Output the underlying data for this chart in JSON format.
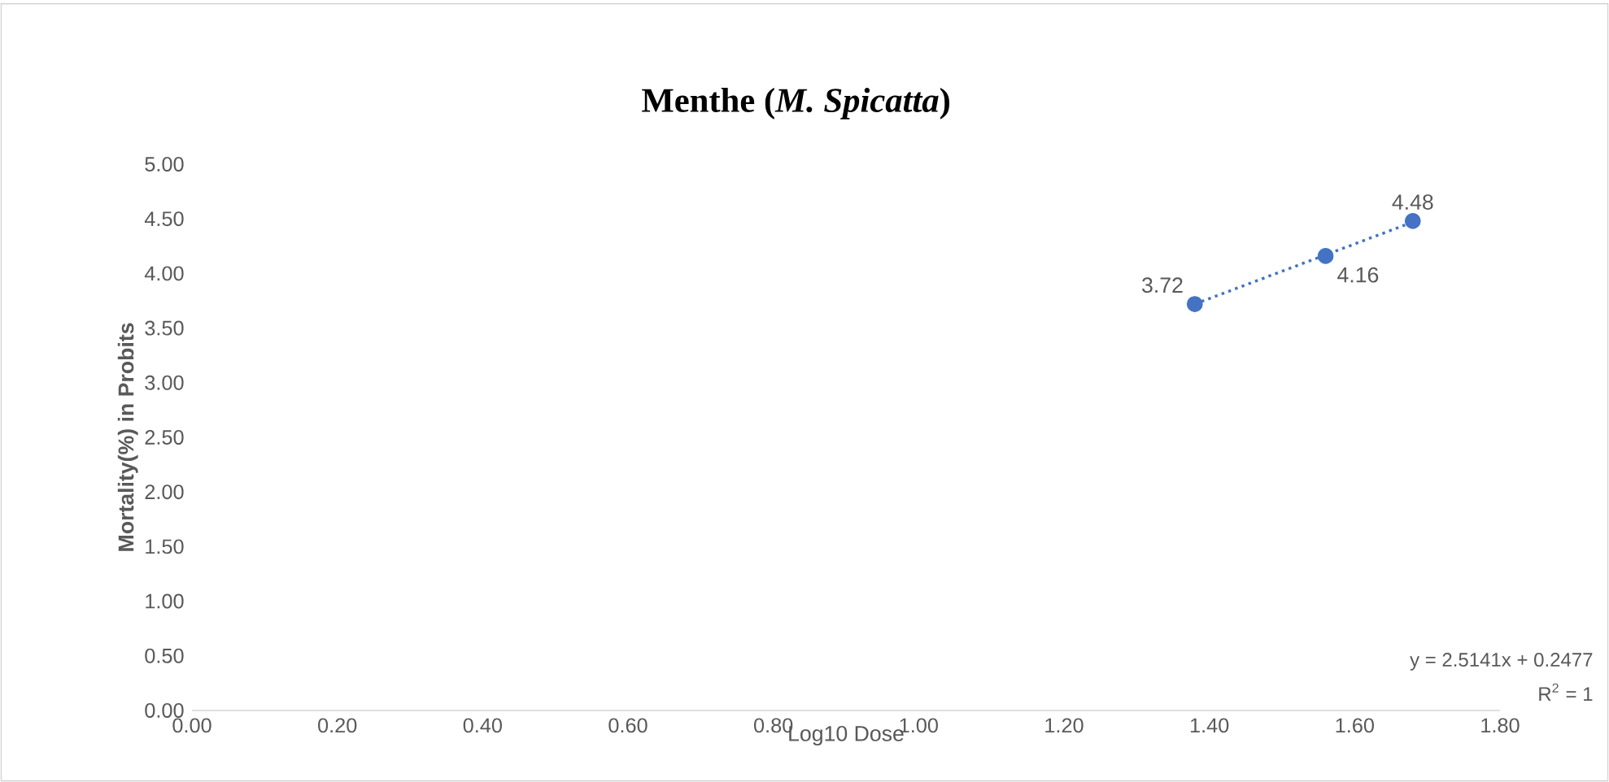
{
  "chart_data": {
    "type": "scatter",
    "title": "**Menthe (*M. Spicatta*)**",
    "xlabel": "Log10 Dose",
    "ylabel": "Mortality(%) in Probits",
    "series": [
      {
        "color": "#4472c4",
        "x": [
          1.38,
          1.56,
          1.68
        ],
        "values": [
          3.72,
          4.16,
          4.48
        ],
        "value_labels": [
          "3.72",
          "4.16",
          "4.48"
        ],
        "marker": "circle"
      },
      {
        "type": "line",
        "color": "#4472c4",
        "x": [
          1.38,
          1.68
        ],
        "values": [
          3.72,
          4.47
        ],
        "line_style": "dotted",
        "marker": "none"
      }
    ],
    "annotations": [
      "y = 2.5141x + 0.2477",
      "R$^{2}$ = 1"
    ],
    "xlim": [
      0,
      1.8
    ],
    "ylim": [
      0,
      5
    ],
    "xticks": [
      {
        "value": 0,
        "label": "0.00"
      },
      {
        "value": 0.2,
        "label": "0.20"
      },
      {
        "value": 0.4,
        "label": "0.40"
      },
      {
        "value": 0.6,
        "label": "0.60"
      },
      {
        "value": 0.8,
        "label": "0.80"
      },
      {
        "value": 1,
        "label": "1.00"
      },
      {
        "value": 1.2,
        "label": "1.20"
      },
      {
        "value": 1.4,
        "label": "1.40"
      },
      {
        "value": 1.6,
        "label": "1.60"
      },
      {
        "value": 1.8,
        "label": "1.80"
      }
    ],
    "yticks": [
      {
        "value": 0,
        "label": "0.00"
      },
      {
        "value": 0.5,
        "label": "0.50"
      },
      {
        "value": 1,
        "label": "1.00"
      },
      {
        "value": 1.5,
        "label": "1.50"
      },
      {
        "value": 2,
        "label": "2.00"
      },
      {
        "value": 2.5,
        "label": "2.50"
      },
      {
        "value": 3,
        "label": "3.00"
      },
      {
        "value": 3.5,
        "label": "3.50"
      },
      {
        "value": 4,
        "label": "4.00"
      },
      {
        "value": 4.5,
        "label": "4.50"
      },
      {
        "value": 5,
        "label": "5.00"
      }
    ],
    "grid": false
  }
}
